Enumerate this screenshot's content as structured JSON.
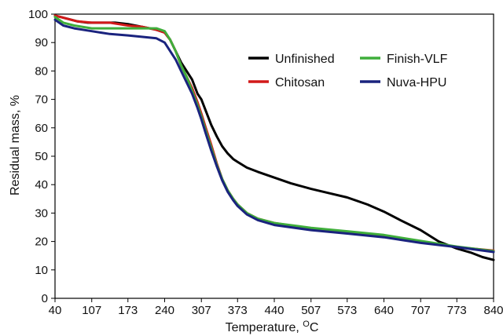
{
  "chart_data": {
    "type": "line",
    "title": "",
    "xlabel": "Temperature, ",
    "xlabel_superscript": "O",
    "xlabel_unit": "C",
    "ylabel": "Residual mass, %",
    "xlim": [
      40,
      840
    ],
    "ylim": [
      0,
      100
    ],
    "x_ticks": [
      "40",
      "107",
      "173",
      "240",
      "307",
      "373",
      "440",
      "507",
      "573",
      "640",
      "707",
      "773",
      "840"
    ],
    "y_ticks": [
      "0",
      "10",
      "20",
      "30",
      "40",
      "50",
      "60",
      "70",
      "80",
      "90",
      "100"
    ],
    "grid": false,
    "legend_position": "top-right",
    "series": [
      {
        "name": "Unfinished",
        "color": "#000000",
        "points": [
          [
            40,
            99.5
          ],
          [
            60,
            98.5
          ],
          [
            80,
            97.5
          ],
          [
            100,
            97
          ],
          [
            120,
            97
          ],
          [
            150,
            97
          ],
          [
            173,
            96.5
          ],
          [
            200,
            95.5
          ],
          [
            225,
            94.5
          ],
          [
            240,
            93.5
          ],
          [
            250,
            91
          ],
          [
            260,
            87
          ],
          [
            270,
            83
          ],
          [
            280,
            80
          ],
          [
            290,
            77
          ],
          [
            300,
            72
          ],
          [
            307,
            70
          ],
          [
            315,
            66
          ],
          [
            325,
            61
          ],
          [
            335,
            57
          ],
          [
            345,
            53.5
          ],
          [
            355,
            51
          ],
          [
            365,
            49
          ],
          [
            373,
            48
          ],
          [
            390,
            46
          ],
          [
            410,
            44.5
          ],
          [
            440,
            42.5
          ],
          [
            470,
            40.5
          ],
          [
            507,
            38.5
          ],
          [
            540,
            37
          ],
          [
            573,
            35.5
          ],
          [
            610,
            33
          ],
          [
            640,
            30.5
          ],
          [
            670,
            27.5
          ],
          [
            707,
            24
          ],
          [
            740,
            20
          ],
          [
            773,
            17.5
          ],
          [
            800,
            16
          ],
          [
            820,
            14.5
          ],
          [
            840,
            13.5
          ]
        ]
      },
      {
        "name": "Chitosan",
        "color": "#d21919",
        "points": [
          [
            40,
            99.5
          ],
          [
            60,
            98.5
          ],
          [
            80,
            97.5
          ],
          [
            107,
            97
          ],
          [
            140,
            97
          ],
          [
            173,
            96
          ],
          [
            200,
            95.5
          ],
          [
            225,
            94.5
          ],
          [
            240,
            93.5
          ],
          [
            250,
            91
          ],
          [
            260,
            87
          ],
          [
            270,
            82
          ],
          [
            280,
            78
          ],
          [
            290,
            74
          ],
          [
            300,
            69
          ],
          [
            307,
            65
          ],
          [
            315,
            60
          ],
          [
            325,
            54
          ],
          [
            335,
            47.5
          ],
          [
            345,
            42
          ],
          [
            355,
            38
          ],
          [
            365,
            35
          ],
          [
            373,
            33
          ],
          [
            390,
            30
          ],
          [
            410,
            28
          ],
          [
            440,
            26.5
          ],
          [
            507,
            24.5
          ],
          [
            573,
            23.2
          ],
          [
            640,
            22
          ],
          [
            707,
            20
          ],
          [
            773,
            18
          ],
          [
            840,
            16.8
          ]
        ]
      },
      {
        "name": "Finish-VLF",
        "color": "#3fae3b",
        "points": [
          [
            40,
            99
          ],
          [
            55,
            97
          ],
          [
            75,
            96
          ],
          [
            107,
            95
          ],
          [
            140,
            95
          ],
          [
            173,
            95
          ],
          [
            200,
            95
          ],
          [
            225,
            95
          ],
          [
            240,
            94
          ],
          [
            250,
            91
          ],
          [
            260,
            87
          ],
          [
            270,
            82
          ],
          [
            280,
            78
          ],
          [
            290,
            73
          ],
          [
            300,
            68
          ],
          [
            307,
            64
          ],
          [
            315,
            59
          ],
          [
            325,
            53
          ],
          [
            335,
            47
          ],
          [
            345,
            42
          ],
          [
            355,
            38
          ],
          [
            365,
            35
          ],
          [
            373,
            33
          ],
          [
            390,
            30
          ],
          [
            410,
            28
          ],
          [
            440,
            26.5
          ],
          [
            507,
            24.8
          ],
          [
            573,
            23.6
          ],
          [
            640,
            22.3
          ],
          [
            707,
            20.2
          ],
          [
            773,
            18.2
          ],
          [
            840,
            16.6
          ]
        ]
      },
      {
        "name": "Nuva-HPU",
        "color": "#1a237e",
        "points": [
          [
            40,
            98
          ],
          [
            55,
            96
          ],
          [
            75,
            95
          ],
          [
            107,
            94
          ],
          [
            140,
            93
          ],
          [
            173,
            92.5
          ],
          [
            200,
            92
          ],
          [
            225,
            91.5
          ],
          [
            240,
            90
          ],
          [
            250,
            87
          ],
          [
            260,
            84
          ],
          [
            270,
            80
          ],
          [
            280,
            76
          ],
          [
            290,
            72
          ],
          [
            300,
            67
          ],
          [
            307,
            63
          ],
          [
            315,
            58
          ],
          [
            325,
            52
          ],
          [
            335,
            46.5
          ],
          [
            345,
            41.5
          ],
          [
            355,
            37.5
          ],
          [
            365,
            34.5
          ],
          [
            373,
            32.5
          ],
          [
            390,
            29.5
          ],
          [
            410,
            27.5
          ],
          [
            440,
            25.8
          ],
          [
            507,
            24
          ],
          [
            573,
            22.8
          ],
          [
            640,
            21.5
          ],
          [
            707,
            19.5
          ],
          [
            773,
            18
          ],
          [
            840,
            16.3
          ]
        ]
      }
    ]
  }
}
